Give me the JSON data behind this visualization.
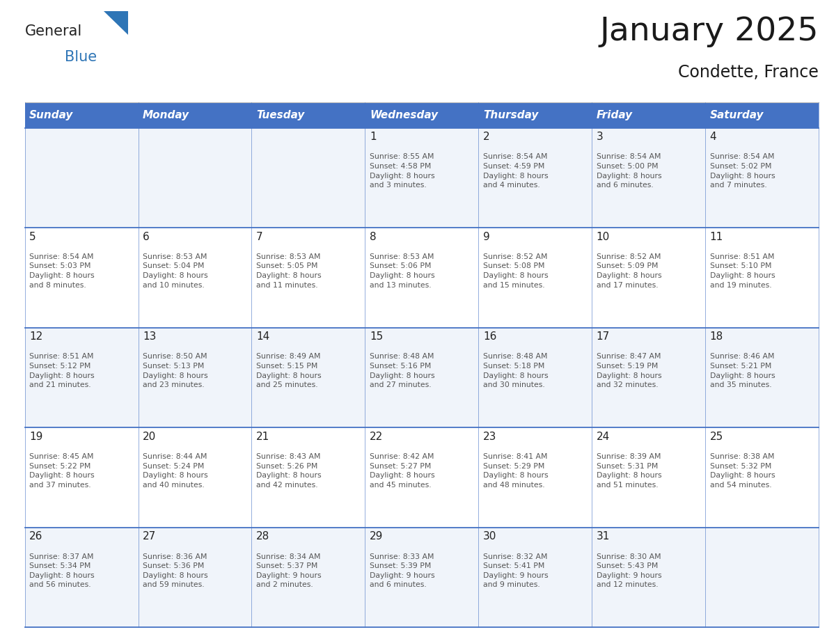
{
  "title": "January 2025",
  "subtitle": "Condette, France",
  "header_bg": "#4472C4",
  "header_text_color": "#FFFFFF",
  "day_names": [
    "Sunday",
    "Monday",
    "Tuesday",
    "Wednesday",
    "Thursday",
    "Friday",
    "Saturday"
  ],
  "row_bg_even": "#F0F4FA",
  "row_bg_odd": "#FFFFFF",
  "border_color": "#4472C4",
  "text_color": "#555555",
  "number_color": "#222222",
  "logo_general_color": "#222222",
  "logo_blue_color": "#2E75B6",
  "calendar": [
    [
      {
        "day": null,
        "text": ""
      },
      {
        "day": null,
        "text": ""
      },
      {
        "day": null,
        "text": ""
      },
      {
        "day": 1,
        "text": "Sunrise: 8:55 AM\nSunset: 4:58 PM\nDaylight: 8 hours\nand 3 minutes."
      },
      {
        "day": 2,
        "text": "Sunrise: 8:54 AM\nSunset: 4:59 PM\nDaylight: 8 hours\nand 4 minutes."
      },
      {
        "day": 3,
        "text": "Sunrise: 8:54 AM\nSunset: 5:00 PM\nDaylight: 8 hours\nand 6 minutes."
      },
      {
        "day": 4,
        "text": "Sunrise: 8:54 AM\nSunset: 5:02 PM\nDaylight: 8 hours\nand 7 minutes."
      }
    ],
    [
      {
        "day": 5,
        "text": "Sunrise: 8:54 AM\nSunset: 5:03 PM\nDaylight: 8 hours\nand 8 minutes."
      },
      {
        "day": 6,
        "text": "Sunrise: 8:53 AM\nSunset: 5:04 PM\nDaylight: 8 hours\nand 10 minutes."
      },
      {
        "day": 7,
        "text": "Sunrise: 8:53 AM\nSunset: 5:05 PM\nDaylight: 8 hours\nand 11 minutes."
      },
      {
        "day": 8,
        "text": "Sunrise: 8:53 AM\nSunset: 5:06 PM\nDaylight: 8 hours\nand 13 minutes."
      },
      {
        "day": 9,
        "text": "Sunrise: 8:52 AM\nSunset: 5:08 PM\nDaylight: 8 hours\nand 15 minutes."
      },
      {
        "day": 10,
        "text": "Sunrise: 8:52 AM\nSunset: 5:09 PM\nDaylight: 8 hours\nand 17 minutes."
      },
      {
        "day": 11,
        "text": "Sunrise: 8:51 AM\nSunset: 5:10 PM\nDaylight: 8 hours\nand 19 minutes."
      }
    ],
    [
      {
        "day": 12,
        "text": "Sunrise: 8:51 AM\nSunset: 5:12 PM\nDaylight: 8 hours\nand 21 minutes."
      },
      {
        "day": 13,
        "text": "Sunrise: 8:50 AM\nSunset: 5:13 PM\nDaylight: 8 hours\nand 23 minutes."
      },
      {
        "day": 14,
        "text": "Sunrise: 8:49 AM\nSunset: 5:15 PM\nDaylight: 8 hours\nand 25 minutes."
      },
      {
        "day": 15,
        "text": "Sunrise: 8:48 AM\nSunset: 5:16 PM\nDaylight: 8 hours\nand 27 minutes."
      },
      {
        "day": 16,
        "text": "Sunrise: 8:48 AM\nSunset: 5:18 PM\nDaylight: 8 hours\nand 30 minutes."
      },
      {
        "day": 17,
        "text": "Sunrise: 8:47 AM\nSunset: 5:19 PM\nDaylight: 8 hours\nand 32 minutes."
      },
      {
        "day": 18,
        "text": "Sunrise: 8:46 AM\nSunset: 5:21 PM\nDaylight: 8 hours\nand 35 minutes."
      }
    ],
    [
      {
        "day": 19,
        "text": "Sunrise: 8:45 AM\nSunset: 5:22 PM\nDaylight: 8 hours\nand 37 minutes."
      },
      {
        "day": 20,
        "text": "Sunrise: 8:44 AM\nSunset: 5:24 PM\nDaylight: 8 hours\nand 40 minutes."
      },
      {
        "day": 21,
        "text": "Sunrise: 8:43 AM\nSunset: 5:26 PM\nDaylight: 8 hours\nand 42 minutes."
      },
      {
        "day": 22,
        "text": "Sunrise: 8:42 AM\nSunset: 5:27 PM\nDaylight: 8 hours\nand 45 minutes."
      },
      {
        "day": 23,
        "text": "Sunrise: 8:41 AM\nSunset: 5:29 PM\nDaylight: 8 hours\nand 48 minutes."
      },
      {
        "day": 24,
        "text": "Sunrise: 8:39 AM\nSunset: 5:31 PM\nDaylight: 8 hours\nand 51 minutes."
      },
      {
        "day": 25,
        "text": "Sunrise: 8:38 AM\nSunset: 5:32 PM\nDaylight: 8 hours\nand 54 minutes."
      }
    ],
    [
      {
        "day": 26,
        "text": "Sunrise: 8:37 AM\nSunset: 5:34 PM\nDaylight: 8 hours\nand 56 minutes."
      },
      {
        "day": 27,
        "text": "Sunrise: 8:36 AM\nSunset: 5:36 PM\nDaylight: 8 hours\nand 59 minutes."
      },
      {
        "day": 28,
        "text": "Sunrise: 8:34 AM\nSunset: 5:37 PM\nDaylight: 9 hours\nand 2 minutes."
      },
      {
        "day": 29,
        "text": "Sunrise: 8:33 AM\nSunset: 5:39 PM\nDaylight: 9 hours\nand 6 minutes."
      },
      {
        "day": 30,
        "text": "Sunrise: 8:32 AM\nSunset: 5:41 PM\nDaylight: 9 hours\nand 9 minutes."
      },
      {
        "day": 31,
        "text": "Sunrise: 8:30 AM\nSunset: 5:43 PM\nDaylight: 9 hours\nand 12 minutes."
      },
      {
        "day": null,
        "text": ""
      }
    ]
  ]
}
